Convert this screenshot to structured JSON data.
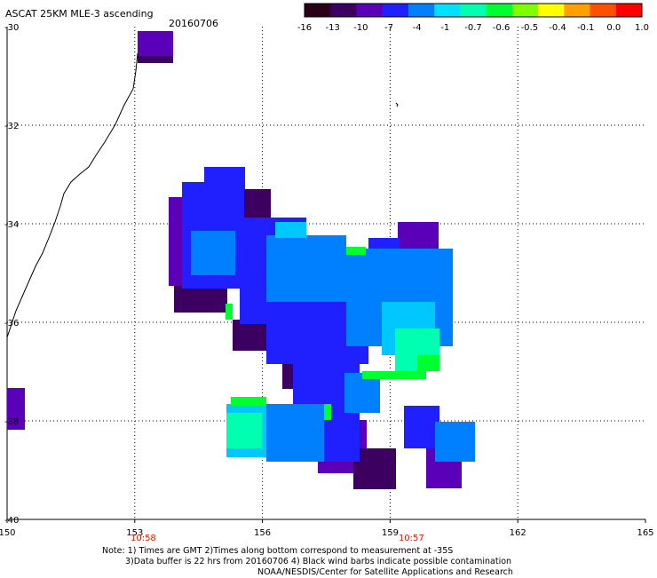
{
  "header": {
    "title": "ASCAT 25KM MLE-3 ascending",
    "date": "20160706"
  },
  "colorbar": {
    "labels": [
      "-16",
      "-13",
      "-10",
      "-7",
      "-4",
      "-1",
      "-0.7",
      "-0.6",
      "-0.5",
      "-0.4",
      "-0.1",
      "0.0",
      "1.0"
    ],
    "colors": [
      "#2a0018",
      "#3b0060",
      "#5a00b8",
      "#2020ff",
      "#0080ff",
      "#00e0ff",
      "#00ffb0",
      "#00ff30",
      "#80ff00",
      "#ffff00",
      "#ffa000",
      "#ff5000",
      "#ff0000"
    ]
  },
  "map": {
    "lon_range": [
      150,
      165
    ],
    "lat_range": [
      -40,
      -30
    ],
    "lon_ticks": [
      "150",
      "153",
      "156",
      "159",
      "162",
      "165"
    ],
    "lat_ticks": [
      "-30",
      "-32",
      "-34",
      "-36",
      "-38",
      "-40"
    ],
    "time_labels": [
      {
        "text": "10:58",
        "lon": 153.2
      },
      {
        "text": "10:57",
        "lon": 159.5
      }
    ],
    "grid": true
  },
  "notes": {
    "line1": "Note: 1) Times are GMT 2)Times along bottom correspond to measurement at -35S",
    "line2": "3)Data buffer is 22 hrs from 20160706 4) Black wind barbs indicate possible contamination",
    "line3": "NOAA/NESDIS/Center for Satellite Applications and Research"
  }
}
